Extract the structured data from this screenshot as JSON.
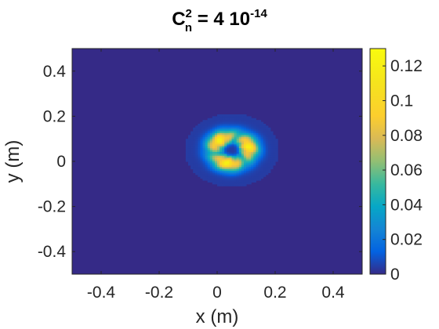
{
  "chart_data": {
    "type": "heatmap",
    "title": {
      "base": "C",
      "superscript": "2",
      "subscript": "n",
      "value": " = 4 10",
      "exponent": "-14"
    },
    "xlabel": "x (m)",
    "ylabel": "y (m)",
    "xlim": [
      -0.5,
      0.5
    ],
    "ylim": [
      -0.5,
      0.5
    ],
    "xticks": [
      -0.4,
      -0.2,
      0,
      0.2,
      0.4
    ],
    "xtick_labels": [
      "-0.4",
      "-0.2",
      "0",
      "0.2",
      "0.4"
    ],
    "yticks": [
      -0.4,
      -0.2,
      0,
      0.2,
      0.4
    ],
    "ytick_labels": [
      "-0.4",
      "-0.2",
      "0",
      "0.2",
      "0.4"
    ],
    "colorbar": {
      "range": [
        0,
        0.13
      ],
      "ticks": [
        0,
        0.02,
        0.04,
        0.06,
        0.08,
        0.1,
        0.12
      ],
      "tick_labels": [
        "0",
        "0.02",
        "0.04",
        "0.06",
        "0.08",
        "0.1",
        "0.12"
      ],
      "colormap": "parula",
      "placement": "right"
    },
    "feature": {
      "shape": "ring",
      "center": [
        0.05,
        0.05
      ],
      "inner_radius": 0.025,
      "peak_radius": 0.06,
      "outer_radius": 0.12,
      "peak_intensity": 0.11
    },
    "background_intensity": 0.004
  },
  "colors": {
    "background_field": "#352a87",
    "axis": "#262626"
  }
}
